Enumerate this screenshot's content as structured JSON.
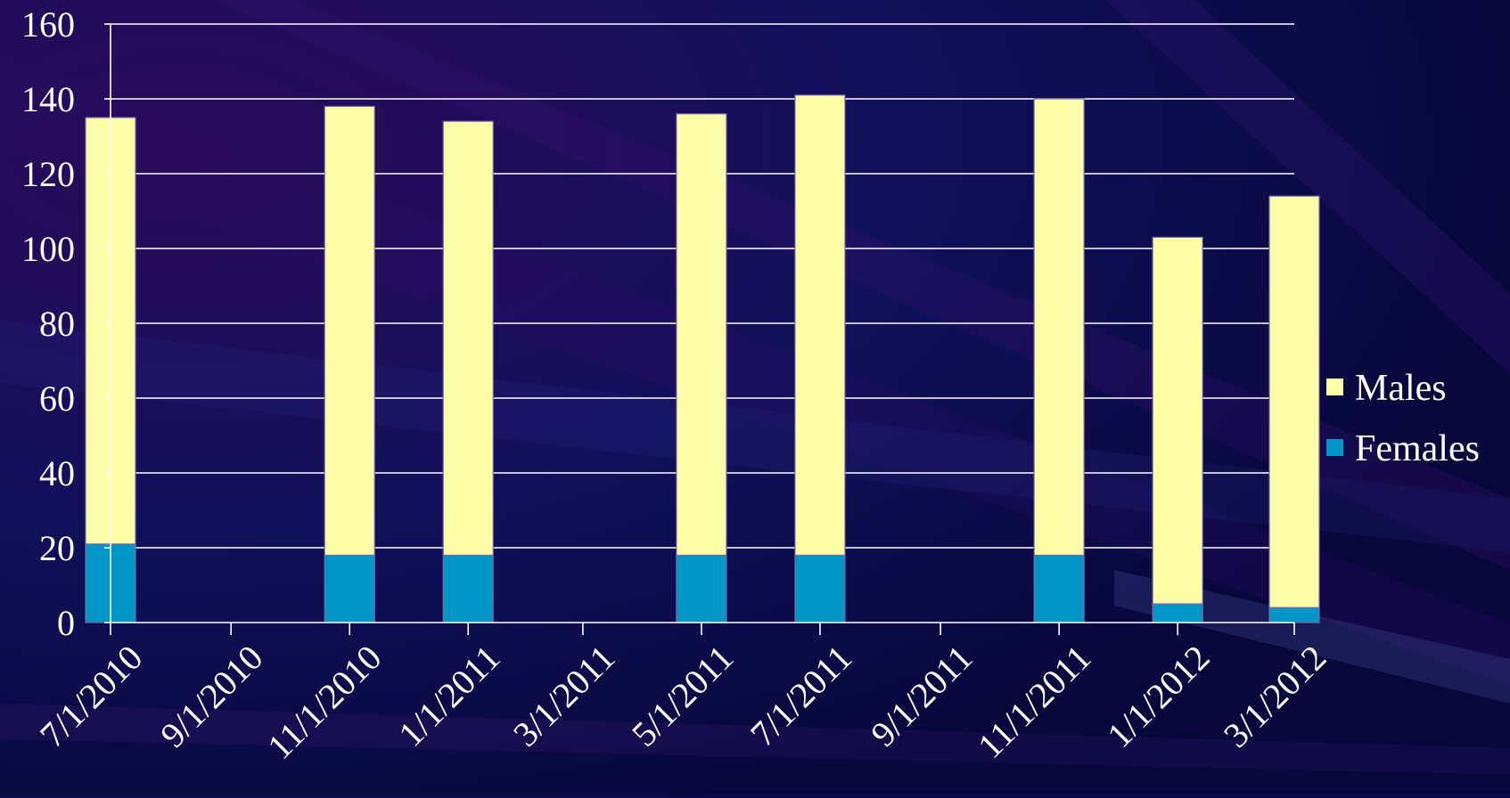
{
  "chart_data": {
    "type": "bar",
    "stacked": true,
    "x": [
      "7/1/2010",
      "11/1/2010",
      "1/1/2011",
      "5/1/2011",
      "7/1/2011",
      "11/1/2011",
      "1/1/2012",
      "3/1/2012"
    ],
    "series": [
      {
        "name": "Females",
        "values": [
          21,
          18,
          18,
          18,
          18,
          18,
          5,
          4
        ],
        "color": "#0096c8"
      },
      {
        "name": "Males",
        "values": [
          114,
          120,
          116,
          118,
          123,
          122,
          98,
          110
        ],
        "color": "#ffffaa"
      }
    ],
    "x_tick_labels": [
      "7/1/2010",
      "9/1/2010",
      "11/1/2010",
      "1/1/2011",
      "3/1/2011",
      "5/1/2011",
      "7/1/2011",
      "9/1/2011",
      "11/1/2011",
      "1/1/2012",
      "3/1/2012"
    ],
    "y_ticks": [
      0,
      20,
      40,
      60,
      80,
      100,
      120,
      140,
      160
    ],
    "ylim": [
      0,
      160
    ],
    "xlim": [
      "7/1/2010",
      "3/1/2012"
    ],
    "x_axis_type": "date",
    "grid": true,
    "legend": {
      "position": "right",
      "entries": [
        "Males",
        "Females"
      ]
    },
    "title": "",
    "xlabel": "",
    "ylabel": ""
  },
  "colors": {
    "background": "#0b0b4a",
    "axis": "#ffffff",
    "gridline": "#ffffff",
    "text": "#ffffff"
  }
}
